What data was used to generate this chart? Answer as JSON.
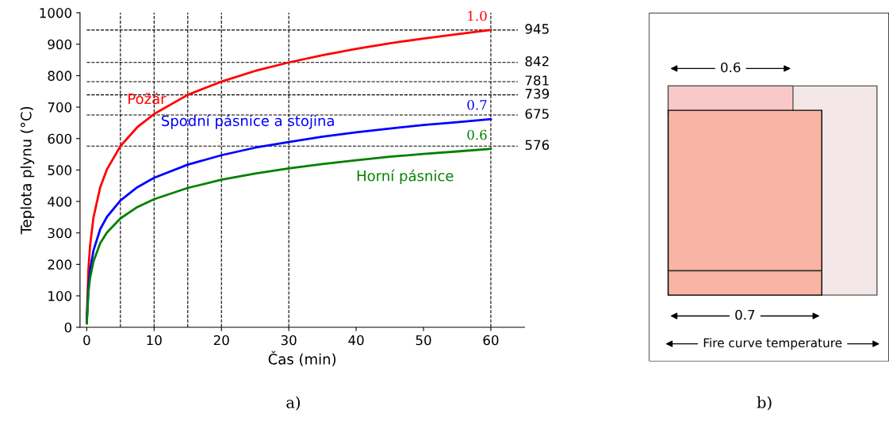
{
  "chart_data": [
    {
      "type": "line",
      "title": "a)",
      "xlabel": "Čas (min)",
      "ylabel": "Teplota plynu (°C)",
      "x": [
        0,
        0.25,
        0.5,
        1,
        2,
        3,
        5,
        7.5,
        10,
        15,
        20,
        25,
        30,
        35,
        40,
        45,
        50,
        55,
        60
      ],
      "series": [
        {
          "name": "Požár",
          "color": "#ff0000",
          "values": [
            20,
            185,
            261,
            349,
            445,
            502,
            576,
            636,
            678,
            739,
            781,
            815,
            842,
            865,
            885,
            903,
            918,
            932,
            945
          ]
        },
        {
          "name": "Spodní pásnice a stojina",
          "color": "#0000ff",
          "values": [
            14,
            130,
            183,
            244,
            312,
            351,
            403,
            445,
            475,
            517,
            547,
            571,
            589,
            606,
            620,
            632,
            643,
            652,
            662
          ]
        },
        {
          "name": "Horní pásnice",
          "color": "#008000",
          "values": [
            12,
            111,
            157,
            209,
            267,
            301,
            346,
            382,
            407,
            443,
            469,
            489,
            505,
            519,
            531,
            542,
            551,
            559,
            567
          ]
        }
      ],
      "xlim": [
        -1,
        65
      ],
      "ylim": [
        0,
        1000
      ],
      "xticks": [
        0,
        10,
        20,
        30,
        40,
        50,
        60
      ],
      "yticks": [
        0,
        100,
        200,
        300,
        400,
        500,
        600,
        700,
        800,
        900,
        1000
      ],
      "grid": false,
      "legend": false,
      "line_style": "solid",
      "marker": "none",
      "ref_lines": [
        {
          "axis": "y",
          "value": 945,
          "label": "945"
        },
        {
          "axis": "y",
          "value": 842,
          "label": "842"
        },
        {
          "axis": "y",
          "value": 781,
          "label": "781"
        },
        {
          "axis": "y",
          "value": 739,
          "label": "739"
        },
        {
          "axis": "y",
          "value": 675,
          "label": "675"
        },
        {
          "axis": "y",
          "value": 576,
          "label": "576"
        },
        {
          "axis": "x",
          "value": 5
        },
        {
          "axis": "x",
          "value": 10
        },
        {
          "axis": "x",
          "value": 15
        },
        {
          "axis": "x",
          "value": 20
        },
        {
          "axis": "x",
          "value": 30
        },
        {
          "axis": "x",
          "value": 60
        }
      ],
      "annotations": [
        "1.0",
        "0.7",
        "0.6"
      ]
    },
    {
      "type": "other",
      "title": "b)",
      "annotations": [
        "0.6",
        "0.7",
        "Fire curve temperature"
      ]
    }
  ]
}
